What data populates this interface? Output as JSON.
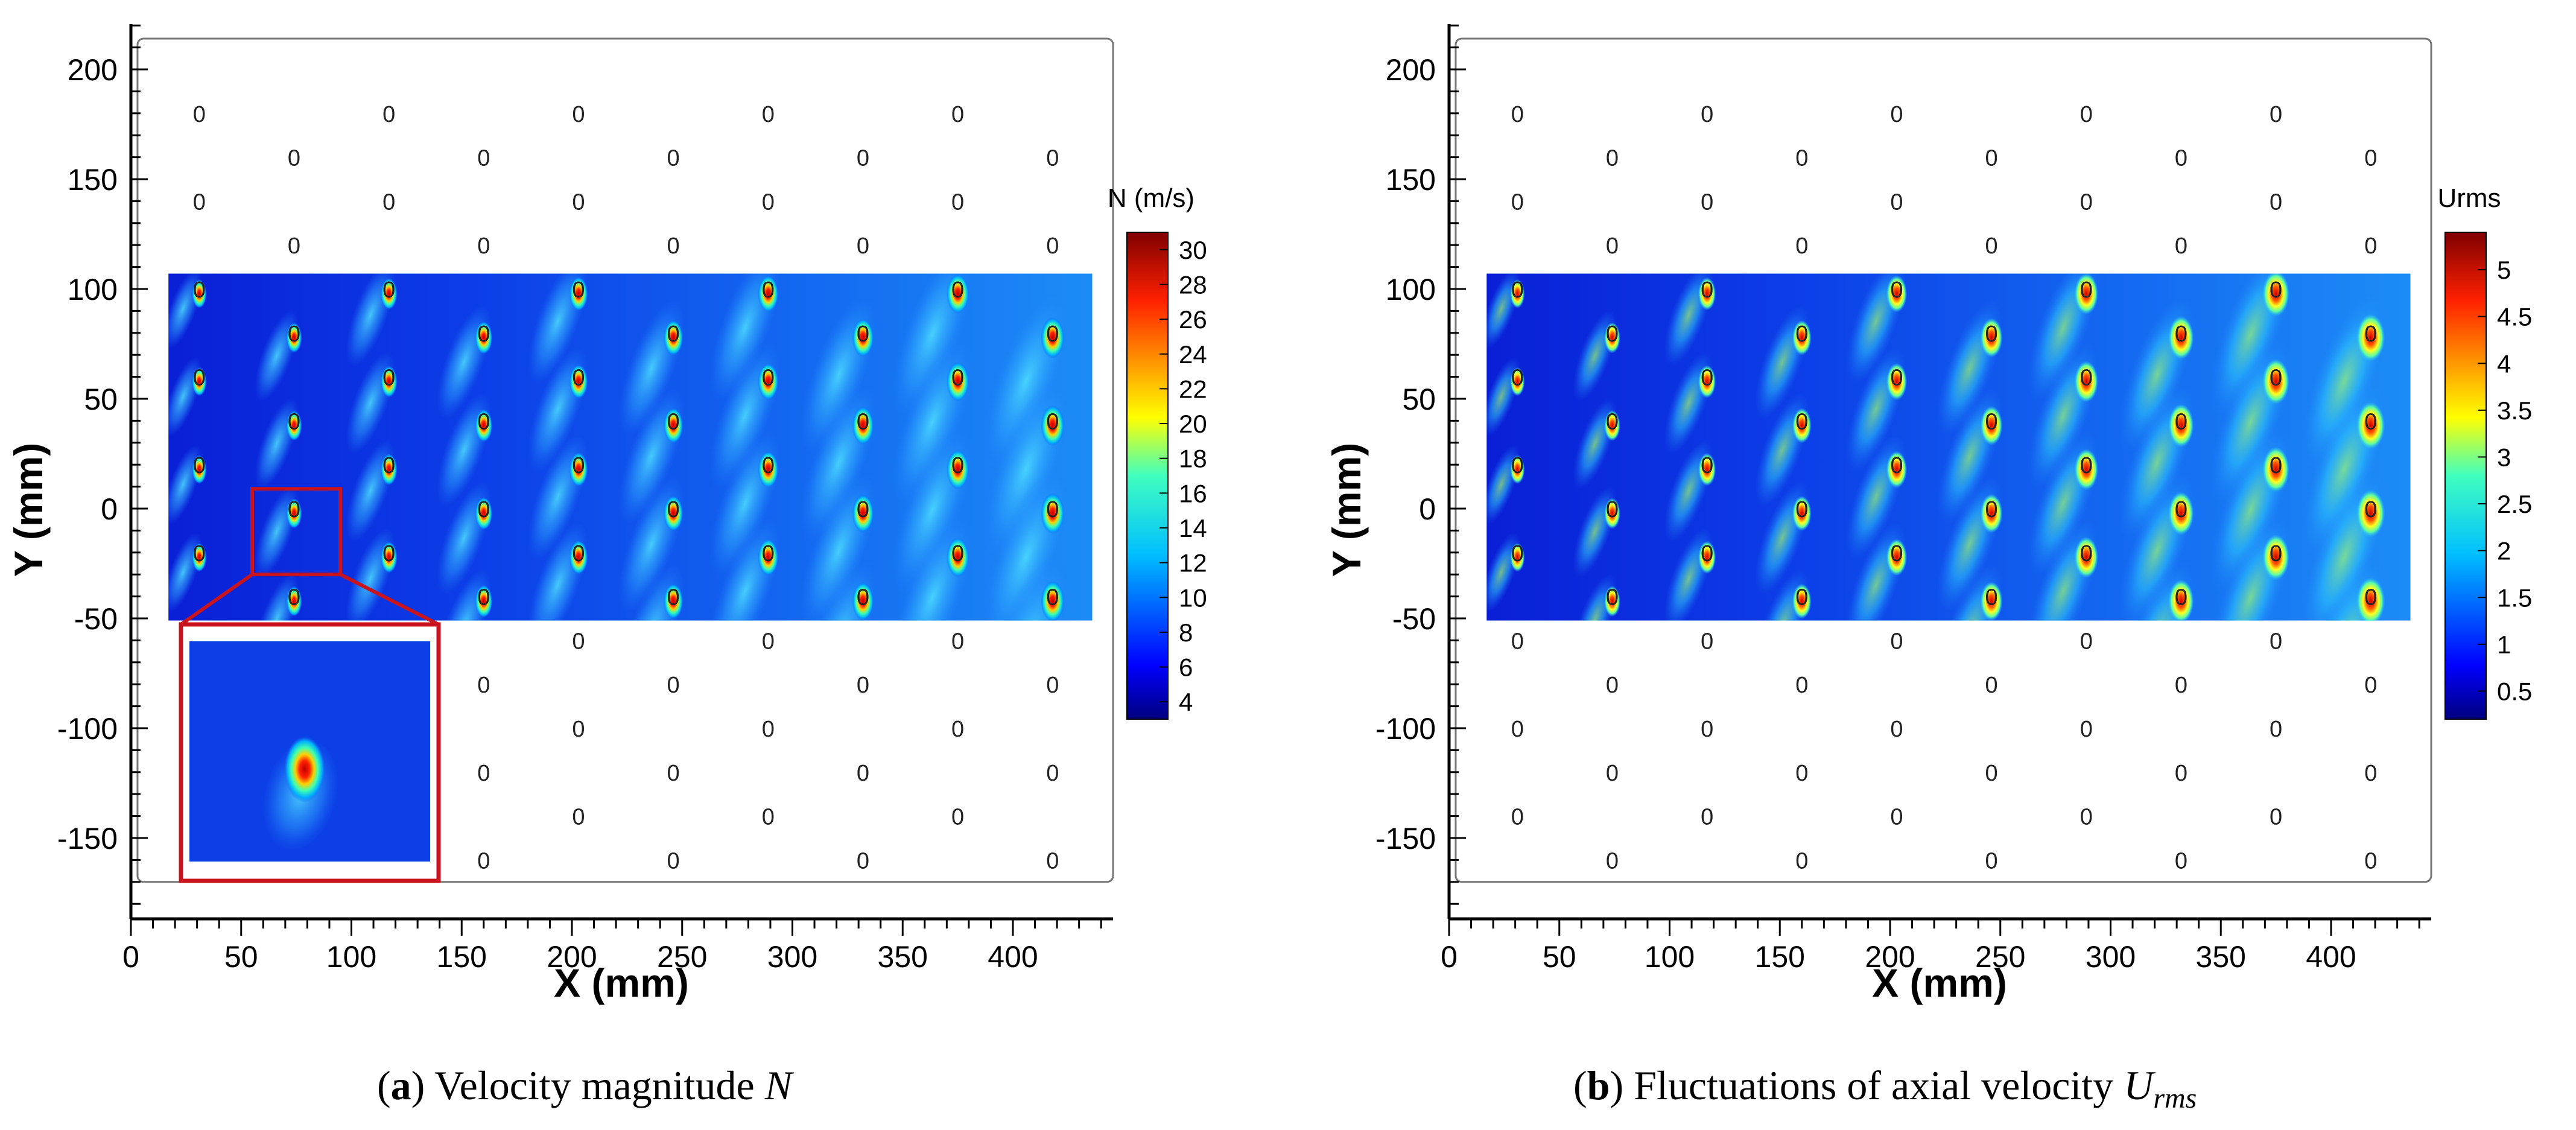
{
  "figure": {
    "caption_a_letter": "a",
    "caption_a_text": "Velocity magnitude",
    "caption_a_symbol": "N",
    "caption_b_letter": "b",
    "caption_b_text": "Fluctuations of axial velocity",
    "caption_b_symbol": "U",
    "caption_b_subscript": "rms"
  },
  "chart_data": [
    {
      "type": "heatmap",
      "id": "a",
      "xlabel": "X (mm)",
      "ylabel": "Y (mm)",
      "xlim": [
        0,
        443
      ],
      "ylim": [
        -187,
        220
      ],
      "xticks": [
        0,
        50,
        100,
        150,
        200,
        250,
        300,
        350,
        400
      ],
      "yticks": [
        -150,
        -100,
        -50,
        0,
        50,
        100,
        150,
        200
      ],
      "field_extent": {
        "x": [
          17,
          436
        ],
        "y": [
          -51,
          107
        ]
      },
      "colorbar": {
        "title": "N (m/s)",
        "range": [
          3,
          31
        ],
        "ticks": [
          4,
          6,
          8,
          10,
          12,
          14,
          16,
          18,
          20,
          22,
          24,
          26,
          28,
          30
        ]
      },
      "inset": {
        "zoom_x": [
          55,
          95
        ],
        "zoom_y": [
          -30,
          9
        ]
      },
      "tube_label": "0",
      "tube_columns_x": [
        31,
        74,
        117,
        160,
        203,
        246,
        289,
        332,
        375,
        418
      ],
      "tube_rows_y_odd": [
        180,
        140,
        100,
        60,
        20,
        -20,
        -60,
        -100,
        -140
      ],
      "tube_rows_y_even": [
        160,
        120,
        80,
        40,
        0,
        -40,
        -80,
        -120,
        -160
      ]
    },
    {
      "type": "heatmap",
      "id": "b",
      "xlabel": "X (mm)",
      "ylabel": "Y (mm)",
      "xlim": [
        0,
        443
      ],
      "ylim": [
        -187,
        220
      ],
      "xticks": [
        0,
        50,
        100,
        150,
        200,
        250,
        300,
        350,
        400
      ],
      "yticks": [
        -150,
        -100,
        -50,
        0,
        50,
        100,
        150,
        200
      ],
      "field_extent": {
        "x": [
          17,
          436
        ],
        "y": [
          -51,
          107
        ]
      },
      "colorbar": {
        "title": "Urms",
        "range": [
          0.2,
          5.4
        ],
        "ticks": [
          0.5,
          1,
          1.5,
          2,
          2.5,
          3,
          3.5,
          4,
          4.5,
          5
        ]
      },
      "tube_label": "0",
      "tube_columns_x": [
        31,
        74,
        117,
        160,
        203,
        246,
        289,
        332,
        375,
        418
      ],
      "tube_rows_y_odd": [
        180,
        140,
        100,
        60,
        20,
        -20,
        -60,
        -100,
        -140
      ],
      "tube_rows_y_even": [
        160,
        120,
        80,
        40,
        0,
        -40,
        -80,
        -120,
        -160
      ]
    }
  ]
}
